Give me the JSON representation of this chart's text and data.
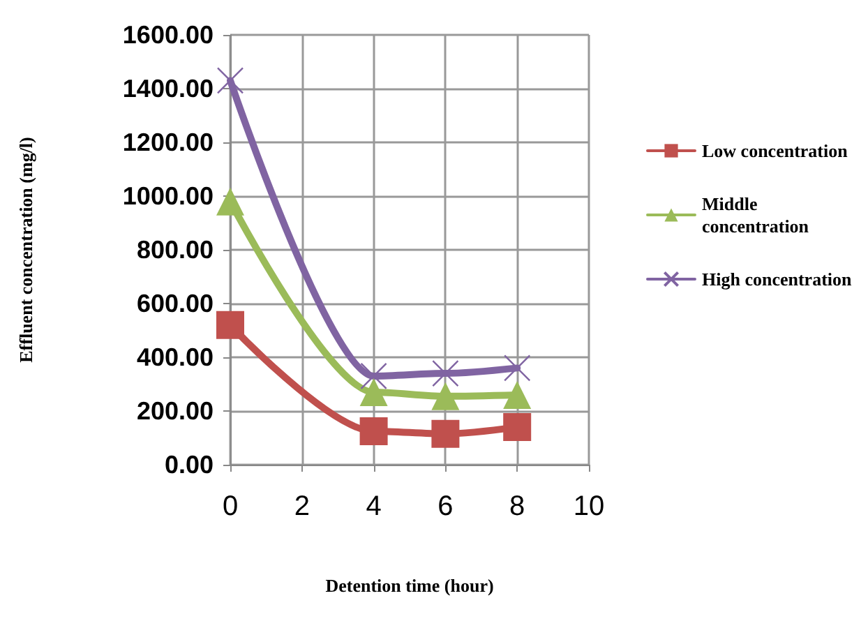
{
  "chart_data": {
    "type": "line",
    "xlabel": "Detention time (hour)",
    "ylabel": "Effluent concentration (mg/l)",
    "x": [
      0,
      4,
      6,
      8
    ],
    "series": [
      {
        "name": "Low concentration",
        "color": "#c0504d",
        "marker": "square",
        "values": [
          520,
          125,
          115,
          140
        ]
      },
      {
        "name": "Middle concentration",
        "color": "#9bbb59",
        "marker": "triangle",
        "values": [
          980,
          270,
          255,
          260
        ]
      },
      {
        "name": "High concentration",
        "color": "#8064a2",
        "marker": "cross",
        "values": [
          1430,
          330,
          340,
          360
        ]
      }
    ],
    "xlim": [
      0,
      10
    ],
    "xticks": [
      0,
      2,
      4,
      6,
      8,
      10
    ],
    "ylim": [
      0,
      1600
    ],
    "yticks": [
      {
        "value": 0,
        "label": "0.00"
      },
      {
        "value": 200,
        "label": "200.00"
      },
      {
        "value": 400,
        "label": "400.00"
      },
      {
        "value": 600,
        "label": "600.00"
      },
      {
        "value": 800,
        "label": "800.00"
      },
      {
        "value": 1000,
        "label": "1000.00"
      },
      {
        "value": 1200,
        "label": "1200.00"
      },
      {
        "value": 1400,
        "label": "1400.00"
      },
      {
        "value": 1600,
        "label": "1600.00"
      }
    ],
    "grid": true,
    "legend": "right"
  }
}
